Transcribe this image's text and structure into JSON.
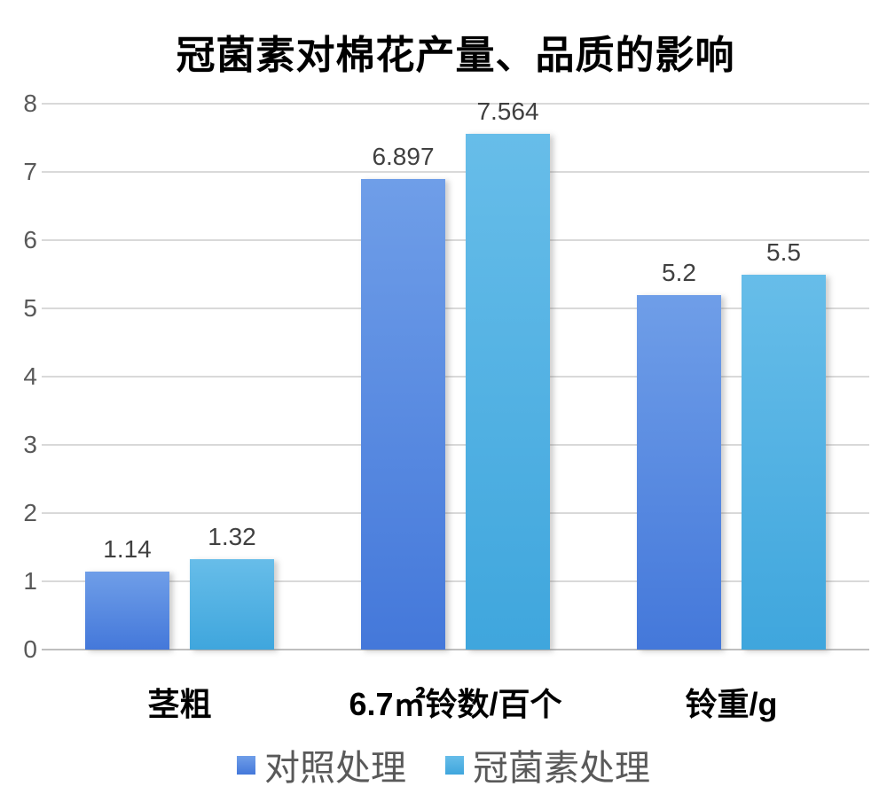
{
  "title": "冠菌素对棉花产量、品质的影响",
  "chart_data": {
    "type": "bar",
    "title": "冠菌素对棉花产量、品质的影响",
    "categories": [
      "茎粗",
      "6.7㎡铃数/百个",
      "铃重/g"
    ],
    "series": [
      {
        "name": "对照处理",
        "values": [
          1.14,
          6.897,
          5.2
        ],
        "color_top": "#6f9ee8",
        "color_bottom": "#4478da"
      },
      {
        "name": "冠菌素处理",
        "values": [
          1.32,
          7.564,
          5.5
        ],
        "color_top": "#67bde9",
        "color_bottom": "#3fa6dd"
      }
    ],
    "data_labels": [
      [
        "1.14",
        "6.897",
        "5.2"
      ],
      [
        "1.32",
        "7.564",
        "5.5"
      ]
    ],
    "yticks": [
      "0",
      "1",
      "2",
      "3",
      "4",
      "5",
      "6",
      "7",
      "8"
    ],
    "ylim": [
      0,
      8
    ],
    "grid": true,
    "legend_position": "bottom"
  },
  "colors": {
    "background": "#ffffff",
    "gridline": "#d9d9d9",
    "baseline": "#bfbfbf",
    "ytick_text": "#595959",
    "data_label_text": "#404040",
    "category_text": "#000000",
    "legend_text": "#595959",
    "title_text": "#000000"
  }
}
